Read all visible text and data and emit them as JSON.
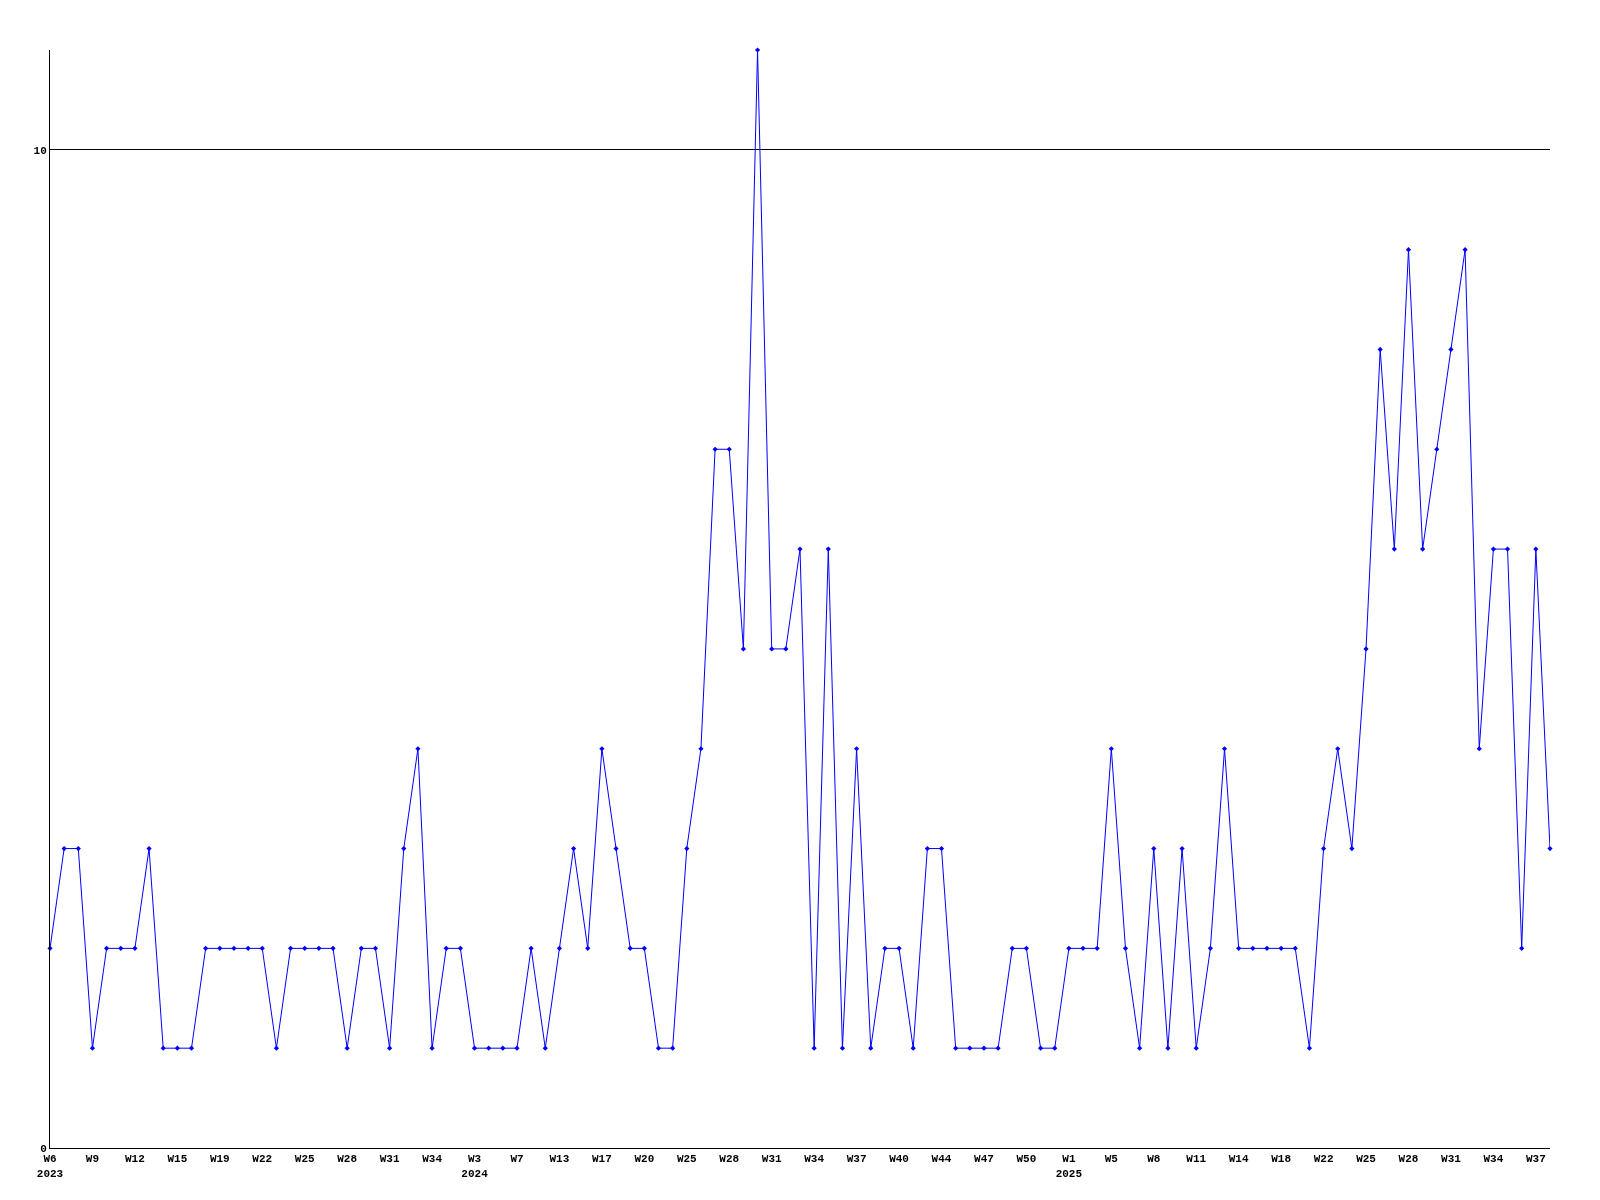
{
  "chart_data": {
    "type": "line",
    "categories": [
      "W6\n2023",
      null,
      null,
      "W9",
      null,
      null,
      "W12",
      null,
      null,
      "W15",
      null,
      null,
      "W19",
      null,
      null,
      "W22",
      null,
      null,
      "W25",
      null,
      null,
      "W28",
      null,
      null,
      "W31",
      null,
      null,
      "W34",
      null,
      null,
      "W3\n2024",
      null,
      null,
      "W7",
      null,
      null,
      "W13",
      null,
      null,
      "W17",
      null,
      null,
      "W20",
      null,
      null,
      "W25",
      null,
      null,
      "W28",
      null,
      null,
      "W31",
      null,
      null,
      "W34",
      null,
      null,
      "W37",
      null,
      null,
      "W40",
      null,
      null,
      "W44",
      null,
      null,
      "W47",
      null,
      null,
      "W50",
      null,
      null,
      "W1\n2025",
      null,
      null,
      "W5",
      null,
      null,
      "W8",
      null,
      null,
      "W11",
      null,
      null,
      "W14",
      null,
      null,
      "W18",
      null,
      null,
      "W22",
      null,
      null,
      "W25",
      null,
      null,
      "W28",
      null,
      null,
      "W31",
      null,
      null,
      "W34",
      null,
      null,
      "W37",
      null
    ],
    "series": [
      {
        "color": "#0000ff",
        "values": [
          2,
          3,
          3,
          1,
          2,
          2,
          2,
          3,
          1,
          1,
          1,
          2,
          2,
          2,
          2,
          2,
          1,
          2,
          2,
          2,
          2,
          1,
          2,
          2,
          1,
          3,
          4,
          1,
          2,
          2,
          1,
          1,
          1,
          1,
          2,
          1,
          2,
          3,
          2,
          4,
          3,
          2,
          2,
          1,
          1,
          3,
          4,
          7,
          7,
          5,
          11,
          5,
          5,
          6,
          1,
          6,
          1,
          4,
          1,
          2,
          2,
          1,
          3,
          3,
          1,
          1,
          1,
          1,
          2,
          2,
          1,
          1,
          2,
          2,
          2,
          4,
          2,
          1,
          3,
          1,
          3,
          1,
          2,
          4,
          2,
          2,
          2,
          2,
          2,
          1,
          3,
          4,
          3,
          5,
          8,
          6,
          9,
          6,
          7,
          8,
          9,
          4,
          6,
          6,
          2,
          6,
          3
        ]
      }
    ],
    "ylim": [
      0,
      11
    ],
    "yticks": [
      0,
      10
    ],
    "grid": "y",
    "legend": false,
    "marker": "diamond",
    "line_style": "solid"
  }
}
